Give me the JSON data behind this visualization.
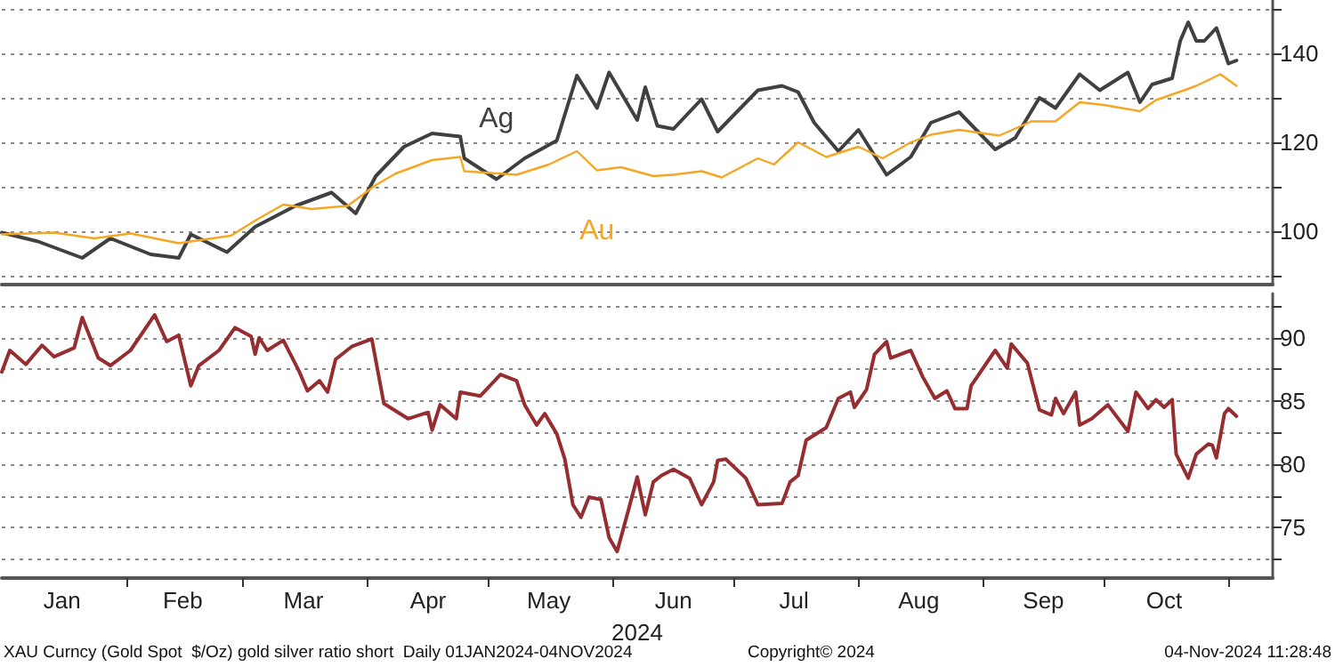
{
  "chart_data": [
    {
      "type": "line",
      "tick_labels": "y",
      "grid": "y",
      "marker": "none",
      "line_style": "solid",
      "xlim": [
        "2024-01-01",
        "2024-11-12"
      ],
      "ylim": [
        88,
        152
      ],
      "yticks": [
        {
          "value": 90,
          "label": null
        },
        100,
        {
          "value": 110,
          "label": null
        },
        120,
        {
          "value": 130,
          "label": null
        },
        140,
        {
          "value": 150,
          "label": null
        }
      ],
      "series": [
        {
          "name": "Ag",
          "color": "#404040",
          "x": [
            "2024-01-01",
            "2024-01-10",
            "2024-01-21",
            "2024-01-28",
            "2024-02-07",
            "2024-02-14",
            "2024-02-17",
            "2024-02-26",
            "2024-03-04",
            "2024-03-14",
            "2024-03-23",
            "2024-03-29",
            "2024-04-03",
            "2024-04-10",
            "2024-04-17",
            "2024-04-24",
            "2024-04-25",
            "2024-05-03",
            "2024-05-10",
            "2024-05-18",
            "2024-05-23",
            "2024-05-28",
            "2024-05-31",
            "2024-06-07",
            "2024-06-09",
            "2024-06-12",
            "2024-06-16",
            "2024-06-23",
            "2024-06-27",
            "2024-07-07",
            "2024-07-13",
            "2024-07-17",
            "2024-07-21",
            "2024-07-27",
            "2024-08-01",
            "2024-08-08",
            "2024-08-14",
            "2024-08-19",
            "2024-08-26",
            "2024-09-04",
            "2024-09-09",
            "2024-09-15",
            "2024-09-19",
            "2024-09-25",
            "2024-09-30",
            "2024-10-07",
            "2024-10-10",
            "2024-10-13",
            "2024-10-18",
            "2024-10-20",
            "2024-10-22",
            "2024-10-24",
            "2024-10-26",
            "2024-10-29",
            "2024-11-01",
            "2024-11-03"
          ],
          "values": [
            99.7,
            97.7,
            94,
            98.4,
            94.8,
            94,
            99.3,
            95.3,
            101,
            105.7,
            108.7,
            104,
            112.4,
            119,
            122,
            121.3,
            116.4,
            111.7,
            116.4,
            120.4,
            135,
            127.7,
            135.7,
            125,
            132.4,
            123.7,
            123,
            129.7,
            122.4,
            131.7,
            132.7,
            131.3,
            124.4,
            118,
            122.8,
            112.7,
            116.7,
            124.4,
            126.8,
            118.4,
            121,
            130,
            127.7,
            135.3,
            131.7,
            135.7,
            129,
            133,
            134.4,
            142.8,
            147,
            142.8,
            142.8,
            145.7,
            137.7,
            138.4
          ]
        },
        {
          "name": "Au",
          "color": "#f5a623",
          "x": [
            "2024-01-01",
            "2024-01-14",
            "2024-01-24",
            "2024-02-02",
            "2024-02-14",
            "2024-02-27",
            "2024-03-04",
            "2024-03-11",
            "2024-03-18",
            "2024-03-27",
            "2024-04-03",
            "2024-04-08",
            "2024-04-17",
            "2024-04-24",
            "2024-04-25",
            "2024-05-08",
            "2024-05-16",
            "2024-05-23",
            "2024-05-28",
            "2024-06-03",
            "2024-06-11",
            "2024-06-16",
            "2024-06-23",
            "2024-06-28",
            "2024-07-07",
            "2024-07-11",
            "2024-07-17",
            "2024-07-24",
            "2024-08-01",
            "2024-08-07",
            "2024-08-14",
            "2024-08-19",
            "2024-08-26",
            "2024-09-05",
            "2024-09-13",
            "2024-09-19",
            "2024-09-25",
            "2024-10-01",
            "2024-10-10",
            "2024-10-14",
            "2024-10-21",
            "2024-10-24",
            "2024-10-30",
            "2024-11-03"
          ],
          "values": [
            99.3,
            99.7,
            98.4,
            99.5,
            97.3,
            99,
            102.4,
            106,
            105,
            105.7,
            110.4,
            113,
            116,
            116.7,
            113.5,
            112.7,
            115,
            118,
            113.7,
            114.4,
            112.4,
            112.7,
            113.5,
            112.1,
            116.4,
            115,
            120,
            116.7,
            119,
            116.4,
            120,
            121.7,
            122.8,
            121.5,
            124.7,
            124.7,
            129,
            128.4,
            127,
            129.5,
            131.7,
            132.7,
            135.3,
            132.7
          ]
        }
      ]
    },
    {
      "type": "line",
      "grid": "y",
      "marker": "none",
      "line_style": "solid",
      "xlabel": "2024",
      "xlim": [
        "2024-01-01",
        "2024-11-12"
      ],
      "xticks": [
        {
          "value": "2024-01-16",
          "label": "Jan"
        },
        {
          "value": "2024-02-01",
          "label": null
        },
        {
          "value": "2024-02-15",
          "label": "Feb"
        },
        {
          "value": "2024-03-01",
          "label": null
        },
        {
          "value": "2024-03-16",
          "label": "Mar"
        },
        {
          "value": "2024-04-01",
          "label": null
        },
        {
          "value": "2024-04-16",
          "label": "Apr"
        },
        {
          "value": "2024-05-01",
          "label": null
        },
        {
          "value": "2024-05-16",
          "label": "May"
        },
        {
          "value": "2024-06-01",
          "label": null
        },
        {
          "value": "2024-06-16",
          "label": "Jun"
        },
        {
          "value": "2024-07-01",
          "label": null
        },
        {
          "value": "2024-07-16",
          "label": "Jul"
        },
        {
          "value": "2024-08-01",
          "label": null
        },
        {
          "value": "2024-08-16",
          "label": "Aug"
        },
        {
          "value": "2024-09-01",
          "label": null
        },
        {
          "value": "2024-09-16",
          "label": "Sep"
        },
        {
          "value": "2024-10-01",
          "label": null
        },
        {
          "value": "2024-10-16",
          "label": "Oct"
        },
        {
          "value": "2024-11-01",
          "label": null
        }
      ],
      "ylim": [
        71,
        93.5
      ],
      "yticks": [
        {
          "value": 72.5,
          "label": null
        },
        75,
        {
          "value": 77.5,
          "label": null
        },
        80,
        {
          "value": 82.5,
          "label": null
        },
        85,
        {
          "value": 87.5,
          "label": null
        },
        90,
        {
          "value": 92.5,
          "label": null
        }
      ],
      "annotations": [
        "XAU Curncy (Gold Spot  $/Oz) gold silver ratio short  Daily 01JAN2024-04NOV2024",
        "Copyright© 2024",
        "04-Nov-2024 11:28:48"
      ],
      "series": [
        {
          "color": "#962d30",
          "x": [
            "2024-01-01",
            "2024-01-03",
            "2024-01-07",
            "2024-01-11",
            "2024-01-14",
            "2024-01-19",
            "2024-01-21",
            "2024-01-25",
            "2024-01-28",
            "2024-02-02",
            "2024-02-08",
            "2024-02-11",
            "2024-02-14",
            "2024-02-17",
            "2024-02-19",
            "2024-02-24",
            "2024-02-28",
            "2024-03-03",
            "2024-03-04",
            "2024-03-05",
            "2024-03-07",
            "2024-03-11",
            "2024-03-15",
            "2024-03-17",
            "2024-03-20",
            "2024-03-22",
            "2024-03-24",
            "2024-03-28",
            "2024-04-02",
            "2024-04-05",
            "2024-04-11",
            "2024-04-16",
            "2024-04-17",
            "2024-04-19",
            "2024-04-23",
            "2024-04-24",
            "2024-04-29",
            "2024-05-04",
            "2024-05-08",
            "2024-05-10",
            "2024-05-13",
            "2024-05-15",
            "2024-05-18",
            "2024-05-20",
            "2024-05-22",
            "2024-05-24",
            "2024-05-26",
            "2024-05-29",
            "2024-05-31",
            "2024-06-02",
            "2024-06-05",
            "2024-06-07",
            "2024-06-09",
            "2024-06-11",
            "2024-06-13",
            "2024-06-16",
            "2024-06-20",
            "2024-06-23",
            "2024-06-26",
            "2024-06-27",
            "2024-06-29",
            "2024-07-04",
            "2024-07-07",
            "2024-07-13",
            "2024-07-15",
            "2024-07-17",
            "2024-07-19",
            "2024-07-24",
            "2024-07-27",
            "2024-07-30",
            "2024-07-31",
            "2024-08-03",
            "2024-08-05",
            "2024-08-08",
            "2024-08-09",
            "2024-08-14",
            "2024-08-17",
            "2024-08-20",
            "2024-08-23",
            "2024-08-25",
            "2024-08-28",
            "2024-08-29",
            "2024-09-04",
            "2024-09-07",
            "2024-09-08",
            "2024-09-12",
            "2024-09-15",
            "2024-09-18",
            "2024-09-19",
            "2024-09-21",
            "2024-09-24",
            "2024-09-25",
            "2024-09-28",
            "2024-10-02",
            "2024-10-07",
            "2024-10-09",
            "2024-10-12",
            "2024-10-14",
            "2024-10-16",
            "2024-10-18",
            "2024-10-19",
            "2024-10-22",
            "2024-10-24",
            "2024-10-27",
            "2024-10-28",
            "2024-10-29",
            "2024-10-31",
            "2024-11-01",
            "2024-11-03"
          ],
          "values": [
            87.3,
            89,
            87.9,
            89.4,
            88.5,
            89.2,
            91.6,
            88.4,
            87.8,
            89,
            91.8,
            89.7,
            90.2,
            86.2,
            87.8,
            89,
            90.8,
            90.1,
            88.7,
            90,
            89,
            89.8,
            87.3,
            85.8,
            86.6,
            85.7,
            88.3,
            89.3,
            89.9,
            84.8,
            83.6,
            84.1,
            82.7,
            84.7,
            83.6,
            85.7,
            85.4,
            87.1,
            86.6,
            84.7,
            83.1,
            84,
            82.4,
            80.4,
            76.8,
            75.8,
            77.4,
            77.2,
            74.2,
            73.1,
            76.6,
            79,
            76,
            78.6,
            79.1,
            79.6,
            78.9,
            76.8,
            78.6,
            80.3,
            80.4,
            78.9,
            76.8,
            76.9,
            78.6,
            79.1,
            81.9,
            82.9,
            85.2,
            85.7,
            84.5,
            85.9,
            88.7,
            89.7,
            88.4,
            89,
            86.9,
            85.2,
            85.8,
            84.4,
            84.4,
            86.2,
            89,
            87.6,
            89.5,
            88,
            84.3,
            83.9,
            85.2,
            84,
            85.7,
            83.1,
            83.6,
            84.7,
            82.6,
            85.7,
            84.4,
            85.1,
            84.5,
            85.1,
            80.8,
            78.9,
            80.8,
            81.6,
            81.5,
            80.5,
            84,
            84.4,
            83.8
          ]
        }
      ]
    }
  ]
}
